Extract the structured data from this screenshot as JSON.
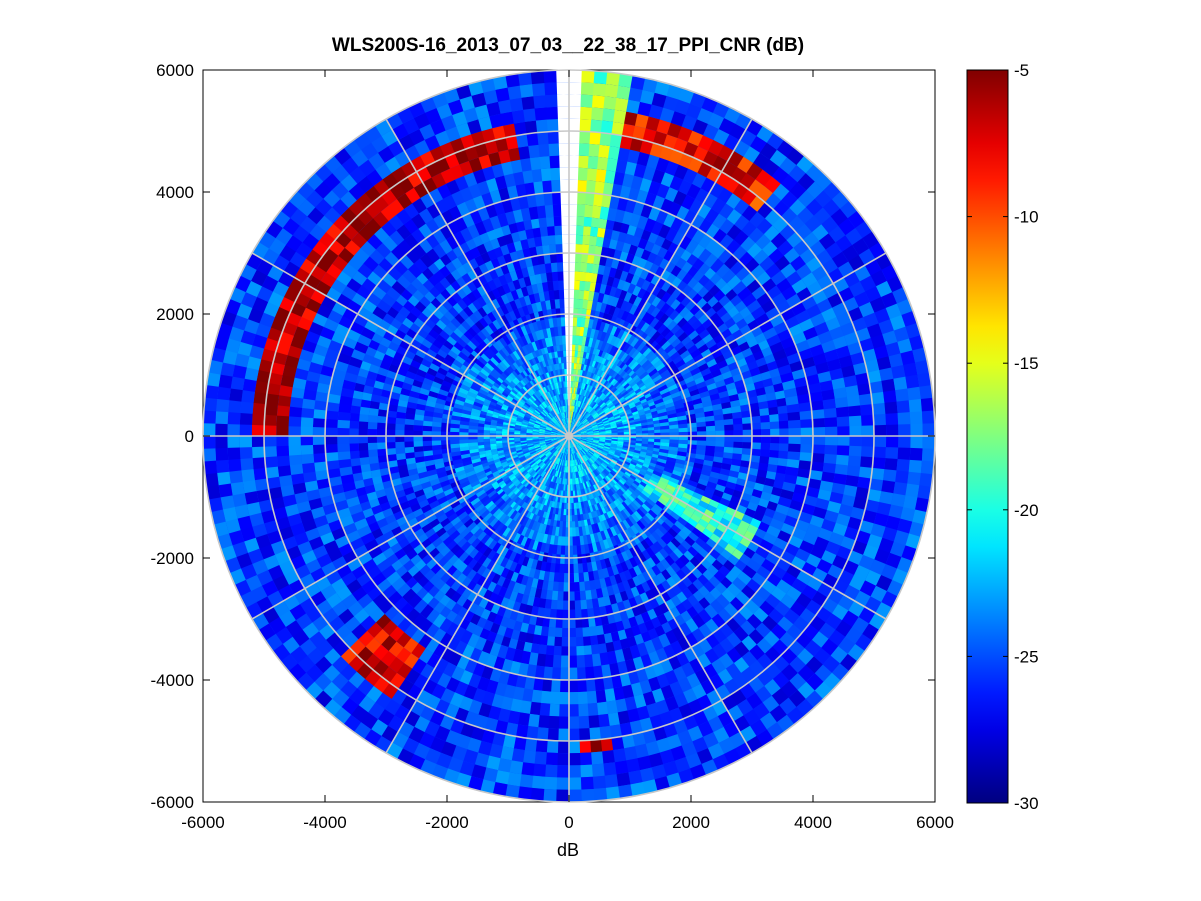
{
  "chart_data": {
    "type": "heatmap",
    "subtype": "polar-ppi",
    "title": "WLS200S-16_2013_07_03__22_38_17_PPI_CNR (dB)",
    "xlabel": "dB",
    "ylabel": "",
    "xlim": [
      -6000,
      6000
    ],
    "ylim": [
      -6000,
      6000
    ],
    "xticks": [
      "-6000",
      "-4000",
      "-2000",
      "0",
      "2000",
      "4000",
      "6000"
    ],
    "yticks": [
      "6000",
      "4000",
      "2000",
      "0",
      "-2000",
      "-4000",
      "-6000"
    ],
    "x_tick_values": [
      -6000,
      -4000,
      -2000,
      0,
      2000,
      4000,
      6000
    ],
    "y_tick_values": [
      6000,
      4000,
      2000,
      0,
      -2000,
      -4000,
      -6000
    ],
    "max_range": 6000,
    "range_rings": [
      1000,
      2000,
      3000,
      4000,
      5000,
      6000
    ],
    "radial_lines_deg": [
      0,
      30,
      60,
      90,
      120,
      150,
      180,
      210,
      240,
      270,
      300,
      330
    ],
    "colorbar": {
      "colormap": "jet",
      "clim": [
        -30,
        -5
      ],
      "ticks": [
        "-5",
        "-10",
        "-15",
        "-20",
        "-25",
        "-30"
      ],
      "tick_values": [
        -5,
        -10,
        -15,
        -20,
        -25,
        -30
      ]
    },
    "background_level_db": -25,
    "features": [
      {
        "name": "north blanked sector",
        "azimuth_deg": [
          -2,
          2
        ],
        "range": [
          500,
          6000
        ],
        "value_db": null
      },
      {
        "name": "east sector",
        "azimuth_deg": [
          0,
          10
        ],
        "range": [
          0,
          6000
        ],
        "value_db": -17
      },
      {
        "name": "west arc",
        "azimuth_deg": [
          -90,
          -10
        ],
        "range": [
          4700,
          5200
        ],
        "value_db": -6
      },
      {
        "name": "northeast arc",
        "azimuth_deg": [
          10,
          40
        ],
        "range": [
          4800,
          5400
        ],
        "value_db": -8
      },
      {
        "name": "southwest cluster",
        "azimuth_deg": [
          -145,
          -135
        ],
        "range": [
          4300,
          5200
        ],
        "value_db": -7
      },
      {
        "name": "south blob",
        "azimuth_deg": [
          173,
          177
        ],
        "range": [
          5000,
          5200
        ],
        "value_db": -7
      },
      {
        "name": "southeast streak",
        "azimuth_deg": [
          115,
          125
        ],
        "range": [
          1500,
          3500
        ],
        "value_db": -20
      }
    ],
    "grid": true
  }
}
